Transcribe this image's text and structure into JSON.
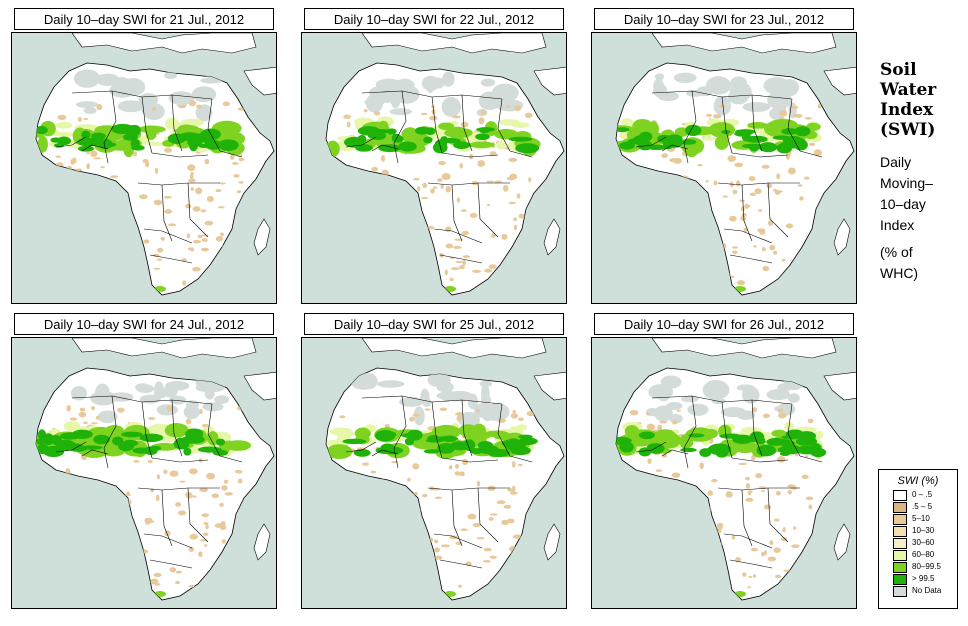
{
  "panels": [
    {
      "title": "Daily 10–day SWI for  21 Jul., 2012",
      "wet": 0.55
    },
    {
      "title": "Daily 10–day SWI for  22 Jul., 2012",
      "wet": 0.52
    },
    {
      "title": "Daily 10–day SWI for  23 Jul., 2012",
      "wet": 0.6
    },
    {
      "title": "Daily 10–day SWI for  24 Jul., 2012",
      "wet": 0.62
    },
    {
      "title": "Daily 10–day SWI for  25 Jul., 2012",
      "wet": 0.58
    },
    {
      "title": "Daily 10–day SWI for  26 Jul., 2012",
      "wet": 0.6
    }
  ],
  "side": {
    "title_lines": [
      "Soil",
      "Water",
      "Index",
      "(SWI)"
    ],
    "subtitle_lines": [
      "Daily",
      "Moving–",
      "10–day",
      "Index"
    ],
    "unit_lines": [
      "(% of",
      " WHC)"
    ]
  },
  "legend": {
    "title": "SWI (%)",
    "items": [
      {
        "label": "0 – .5",
        "color": "#ffffff"
      },
      {
        "label": ".5 – 5",
        "color": "#d9b683"
      },
      {
        "label": "5–10",
        "color": "#e8c99a"
      },
      {
        "label": "10–30",
        "color": "#f2dfb4"
      },
      {
        "label": "30–60",
        "color": "#f7efc8"
      },
      {
        "label": "60–80",
        "color": "#e6f7a8"
      },
      {
        "label": "80–99.5",
        "color": "#7ed320"
      },
      {
        "label": "> 99.5",
        "color": "#1fb30a"
      },
      {
        "label": "No Data",
        "color": "#d3dcd8"
      }
    ]
  },
  "colors": {
    "ocean": "#cfe0da",
    "land": "#ffffff",
    "nodata": "#d3dcd8",
    "dry": "#e8c99a",
    "moist": "#e6f7a8",
    "wet": "#7ed320",
    "verywet": "#1fb30a"
  }
}
